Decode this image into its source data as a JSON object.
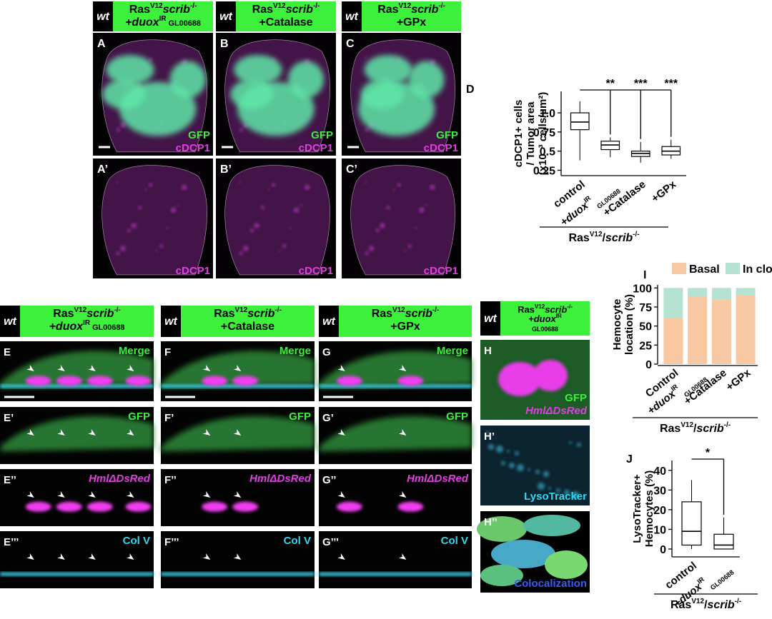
{
  "top_headers": [
    {
      "genotype": "wt",
      "line1": [
        {
          "text": "Ras"
        },
        {
          "text": "V12",
          "style": "sup"
        },
        {
          "text": "scrib",
          "style": "italic"
        },
        {
          "text": "-/-",
          "style": "sup"
        }
      ],
      "line2": [
        {
          "text": "+duox",
          "style": "italic"
        },
        {
          "text": "IR",
          "style": "sup"
        },
        {
          "text": " GL00688",
          "style": "small"
        }
      ]
    },
    {
      "genotype": "wt",
      "line1": [
        {
          "text": "Ras"
        },
        {
          "text": "V12",
          "style": "sup"
        },
        {
          "text": "scrib",
          "style": "italic"
        },
        {
          "text": "-/-",
          "style": "sup"
        }
      ],
      "line2": [
        {
          "text": "+Catalase"
        }
      ]
    },
    {
      "genotype": "wt",
      "line1": [
        {
          "text": "Ras"
        },
        {
          "text": "V12",
          "style": "sup"
        },
        {
          "text": "scrib",
          "style": "italic"
        },
        {
          "text": "-/-",
          "style": "sup"
        }
      ],
      "line2": [
        {
          "text": "+GPx"
        }
      ]
    }
  ],
  "top_panels": [
    {
      "label": "A",
      "stains": [
        {
          "text": "GFP",
          "color": "#3cf03c"
        },
        {
          "text": "cDCP1",
          "color": "#e23fe2"
        }
      ]
    },
    {
      "label": "B",
      "stains": [
        {
          "text": "GFP",
          "color": "#3cf03c"
        },
        {
          "text": "cDCP1",
          "color": "#e23fe2"
        }
      ]
    },
    {
      "label": "C",
      "stains": [
        {
          "text": "GFP",
          "color": "#3cf03c"
        },
        {
          "text": "cDCP1",
          "color": "#e23fe2"
        }
      ]
    },
    {
      "label": "A’",
      "stains": [
        {
          "text": "cDCP1",
          "color": "#e23fe2"
        }
      ]
    },
    {
      "label": "B’",
      "stains": [
        {
          "text": "cDCP1",
          "color": "#e23fe2"
        }
      ]
    },
    {
      "label": "C’",
      "stains": [
        {
          "text": "cDCP1",
          "color": "#e23fe2"
        }
      ]
    }
  ],
  "panel_D": {
    "type": "box",
    "label": "D",
    "ylabel": [
      "cDCP1+ cells",
      "/ Tumor area",
      "(x10⁻³ cells/µm²)"
    ],
    "categories": [
      [
        {
          "text": "control"
        }
      ],
      [
        {
          "text": "+duox",
          "style": "italic"
        },
        {
          "text": "IR",
          "style": "sup"
        },
        {
          "text": "GL00688",
          "style": "sub"
        }
      ],
      [
        {
          "text": "+Catalase"
        }
      ],
      [
        {
          "text": "+GPx"
        }
      ]
    ],
    "boxes": [
      {
        "min": 0.38,
        "q1": 0.78,
        "median": 0.88,
        "q3": 1.0,
        "max": 1.15
      },
      {
        "min": 0.42,
        "q1": 0.52,
        "median": 0.58,
        "q3": 0.63,
        "max": 0.68
      },
      {
        "min": 0.35,
        "q1": 0.43,
        "median": 0.47,
        "q3": 0.5,
        "max": 0.62
      },
      {
        "min": 0.4,
        "q1": 0.45,
        "median": 0.5,
        "q3": 0.56,
        "max": 0.65
      }
    ],
    "significance": [
      "**",
      "***",
      "***"
    ],
    "ylim": [
      0.18,
      1.28
    ],
    "yticks": [
      0.25,
      0.5,
      0.75,
      {
        "value": 1.0,
        "label": "1.0"
      }
    ],
    "footer": [
      {
        "text": "Ras"
      },
      {
        "text": "V12",
        "style": "sup"
      },
      {
        "text": "/"
      },
      {
        "text": "scrib",
        "style": "italic"
      },
      {
        "text": "-/-",
        "style": "sup"
      }
    ]
  },
  "panel_I": {
    "type": "stacked_bar",
    "label": "I",
    "ylabel": [
      "Hemocyte",
      "location (%)"
    ],
    "categories": [
      [
        {
          "text": "Control"
        }
      ],
      [
        {
          "text": "+duox",
          "style": "italic"
        },
        {
          "text": "IR",
          "style": "sup"
        },
        {
          "text": "GL00688",
          "style": "sub"
        }
      ],
      [
        {
          "text": "+Catalase"
        }
      ],
      [
        {
          "text": "+GPx"
        }
      ]
    ],
    "series": [
      {
        "name": "Basal",
        "color": "#f8c8a2",
        "values": [
          60,
          88,
          85,
          90
        ]
      },
      {
        "name": "In clone",
        "color": "#b6e3d1",
        "values": [
          40,
          12,
          15,
          10
        ]
      }
    ],
    "ylim": [
      0,
      104
    ],
    "yticks": [
      0,
      25,
      50,
      75,
      100
    ],
    "footer": [
      {
        "text": "Ras"
      },
      {
        "text": "V12",
        "style": "sup"
      },
      {
        "text": "/"
      },
      {
        "text": "scrib",
        "style": "italic"
      },
      {
        "text": "-/-",
        "style": "sup"
      }
    ]
  },
  "panel_J": {
    "type": "box",
    "label": "J",
    "ylabel": [
      "LysoTracker+",
      "Hemocytes (%)"
    ],
    "categories": [
      [
        {
          "text": "control"
        }
      ],
      [
        {
          "text": "+duox",
          "style": "italic"
        },
        {
          "text": "IR",
          "style": "sup"
        },
        {
          "text": "GL00688",
          "style": "sub"
        }
      ]
    ],
    "boxes": [
      {
        "min": 0,
        "q1": 2,
        "median": 9,
        "q3": 24,
        "max": 35
      },
      {
        "min": 0,
        "q1": 0,
        "median": 2,
        "q3": 7.5,
        "max": 16
      }
    ],
    "significance": [
      "*"
    ],
    "ylim": [
      -4,
      45
    ],
    "yticks": [
      0,
      10,
      20,
      30,
      40
    ],
    "footer": [
      {
        "text": "Ras"
      },
      {
        "text": "V12",
        "style": "sup"
      },
      {
        "text": "/"
      },
      {
        "text": "scrib",
        "style": "italic"
      },
      {
        "text": "-/-",
        "style": "sup"
      }
    ]
  },
  "bottom_headers": [
    {
      "genotype": "wt",
      "line1": [
        {
          "text": "Ras"
        },
        {
          "text": "V12",
          "style": "sup"
        },
        {
          "text": "scrib",
          "style": "italic"
        },
        {
          "text": "-/-",
          "style": "sup"
        }
      ],
      "line2": [
        {
          "text": "+duox",
          "style": "italic"
        },
        {
          "text": "IR",
          "style": "sup"
        },
        {
          "text": " GL00688",
          "style": "small"
        }
      ]
    },
    {
      "genotype": "wt",
      "line1": [
        {
          "text": "Ras"
        },
        {
          "text": "V12",
          "style": "sup"
        },
        {
          "text": "scrib",
          "style": "italic"
        },
        {
          "text": "-/-",
          "style": "sup"
        }
      ],
      "line2": [
        {
          "text": "+Catalase"
        }
      ]
    },
    {
      "genotype": "wt",
      "line1": [
        {
          "text": "Ras"
        },
        {
          "text": "V12",
          "style": "sup"
        },
        {
          "text": "scrib",
          "style": "italic"
        },
        {
          "text": "-/-",
          "style": "sup"
        }
      ],
      "line2": [
        {
          "text": "+GPx"
        }
      ]
    },
    {
      "genotype": "wt",
      "line1": [
        {
          "text": "Ras"
        },
        {
          "text": "V12",
          "style": "sup"
        },
        {
          "text": "scrib",
          "style": "italic"
        },
        {
          "text": "-/-",
          "style": "sup"
        }
      ],
      "line2": [
        {
          "text": "+duox",
          "style": "italic"
        },
        {
          "text": "IR",
          "style": "sup"
        }
      ],
      "line3": [
        {
          "text": "GL00688",
          "style": "small"
        }
      ]
    }
  ],
  "bottom_panels": [
    [
      {
        "label": "E",
        "stain": {
          "text": "Merge",
          "color": "#3cf03c"
        }
      },
      {
        "label": "E’",
        "stain": {
          "text": "GFP",
          "color": "#3cf03c"
        }
      },
      {
        "label": "E’’",
        "stain": {
          "text": "HmlΔDsRed",
          "color": "#e23fe2"
        }
      },
      {
        "label": "E’’’",
        "stain": {
          "text": "Col V",
          "color": "#34d8f0"
        }
      }
    ],
    [
      {
        "label": "F",
        "stain": {
          "text": "Merge",
          "color": "#3cf03c"
        }
      },
      {
        "label": "F’",
        "stain": {
          "text": "GFP",
          "color": "#3cf03c"
        }
      },
      {
        "label": "F’’",
        "stain": {
          "text": "HmlΔDsRed",
          "color": "#e23fe2"
        }
      },
      {
        "label": "F’’’",
        "stain": {
          "text": "Col V",
          "color": "#34d8f0"
        }
      }
    ],
    [
      {
        "label": "G",
        "stain": {
          "text": "Merge",
          "color": "#3cf03c"
        }
      },
      {
        "label": "G’",
        "stain": {
          "text": "GFP",
          "color": "#3cf03c"
        }
      },
      {
        "label": "G’’",
        "stain": {
          "text": "HmlΔDsRed",
          "color": "#e23fe2"
        }
      },
      {
        "label": "G’’’",
        "stain": {
          "text": "Col V",
          "color": "#34d8f0"
        }
      }
    ]
  ],
  "h_panels": [
    {
      "label": "H",
      "stains": [
        {
          "text": "GFP",
          "color": "#3cf03c"
        },
        {
          "text": "HmlΔDsRed",
          "color": "#e23fe2"
        }
      ]
    },
    {
      "label": "H’",
      "stains": [
        {
          "text": "LysoTracker",
          "color": "#34d8f0"
        }
      ]
    },
    {
      "label": "H’’",
      "stains": [
        {
          "text": "Colocalization",
          "color": "#3a5cf0"
        }
      ]
    }
  ]
}
